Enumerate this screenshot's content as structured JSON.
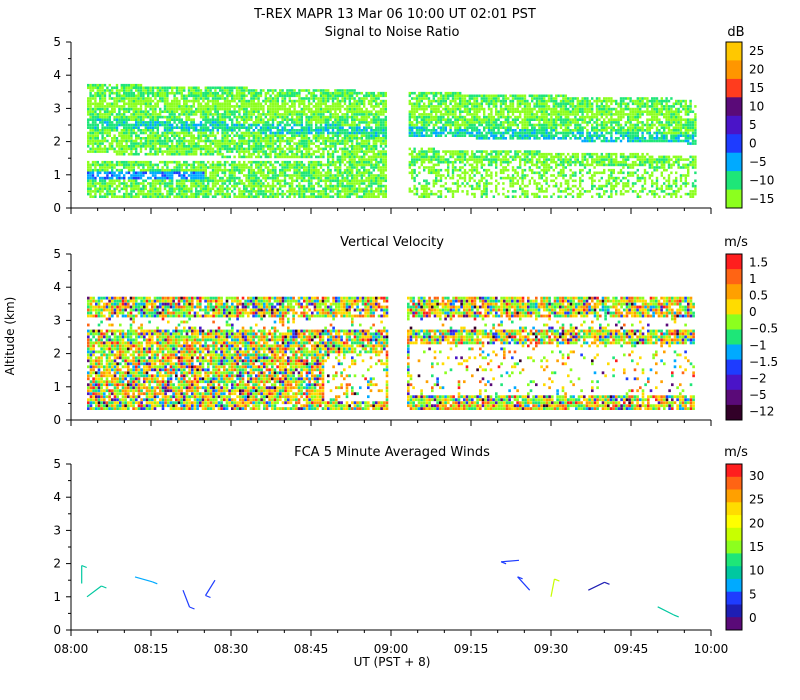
{
  "header": {
    "title": "T-REX   MAPR 13 Mar 06   10:00 UT   02:01   PST"
  },
  "shared_axes": {
    "x_tick_labels": [
      "08:00",
      "08:15",
      "08:30",
      "08:45",
      "09:00",
      "09:15",
      "09:30",
      "09:45",
      "10:00"
    ],
    "x_label": "UT  (PST + 8)",
    "y_label": "Altitude (km)",
    "y_tick_labels": [
      "0",
      "1",
      "2",
      "3",
      "4",
      "5"
    ],
    "y_range_km": [
      0,
      5
    ],
    "x_range_minutes_after_0800": [
      0,
      120
    ]
  },
  "chart_data": [
    {
      "type": "heatmap",
      "title": "Signal to Noise Ratio",
      "units": "dB",
      "colorbar_labels": [
        "25",
        "20",
        "15",
        "10",
        "5",
        "0",
        "−5",
        "−10",
        "−15"
      ],
      "colorbar_colors": [
        "#ffc800",
        "#ff9600",
        "#ff3c1e",
        "#5a0a78",
        "#4a14c8",
        "#1e3cff",
        "#00aaff",
        "#1ee678",
        "#8cff1e"
      ],
      "data_gap_minutes": [
        59,
        63
      ],
      "layers": [
        {
          "from_km": 0.3,
          "to_km": 1.3,
          "dB": -10,
          "note": "lower echo with weaker patches"
        },
        {
          "from_km": 0.8,
          "to_km": 1.0,
          "dB": 0,
          "note": "strongest region near 08:00-08:25"
        },
        {
          "from_km": 1.6,
          "to_km": 2.3,
          "dB": -10
        },
        {
          "from_km": 2.3,
          "to_km": 2.6,
          "dB": -5
        },
        {
          "from_km": 2.6,
          "to_km": 3.7,
          "dB": -10
        }
      ]
    },
    {
      "type": "heatmap",
      "title": "Vertical Velocity",
      "units": "m/s",
      "colorbar_labels": [
        "1.5",
        "1",
        "0.5",
        "0",
        "−0.5",
        "−1",
        "−1.5",
        "−2",
        "−5",
        "−12"
      ],
      "colorbar_colors": [
        "#ff1e1e",
        "#ff6414",
        "#ffa000",
        "#ffdc00",
        "#8cff1e",
        "#1ee678",
        "#00aaff",
        "#1e3cff",
        "#4a14c8",
        "#5a0a78",
        "#320028"
      ],
      "data_gap_minutes": [
        59,
        63
      ],
      "range_gates_km": [
        0.3,
        3.7
      ]
    },
    {
      "type": "barbs",
      "title": "FCA 5 Minute Averaged Winds",
      "units": "m/s",
      "colorbar_labels": [
        "30",
        "25",
        "20",
        "15",
        "10",
        "5",
        "0"
      ],
      "colorbar_colors": [
        "#ff1e1e",
        "#ff6414",
        "#ffa000",
        "#ffdc00",
        "#ffff00",
        "#c8ff00",
        "#8cff1e",
        "#1ee678",
        "#00c8a0",
        "#00aaff",
        "#1e3cff",
        "#1e1eb4",
        "#5a0a78"
      ],
      "barbs": [
        {
          "time_min": 2,
          "alt_km": 1.4,
          "speed": 10
        },
        {
          "time_min": 3,
          "alt_km": 1.0,
          "speed": 9
        },
        {
          "time_min": 12,
          "alt_km": 1.6,
          "speed": 7
        },
        {
          "time_min": 21,
          "alt_km": 1.2,
          "speed": 4
        },
        {
          "time_min": 27,
          "alt_km": 1.5,
          "speed": 5
        },
        {
          "time_min": 84,
          "alt_km": 2.1,
          "speed": 6
        },
        {
          "time_min": 86,
          "alt_km": 1.2,
          "speed": 6
        },
        {
          "time_min": 90,
          "alt_km": 1.0,
          "speed": 18
        },
        {
          "time_min": 97,
          "alt_km": 1.2,
          "speed": 3
        },
        {
          "time_min": 110,
          "alt_km": 0.7,
          "speed": 9
        }
      ]
    }
  ]
}
